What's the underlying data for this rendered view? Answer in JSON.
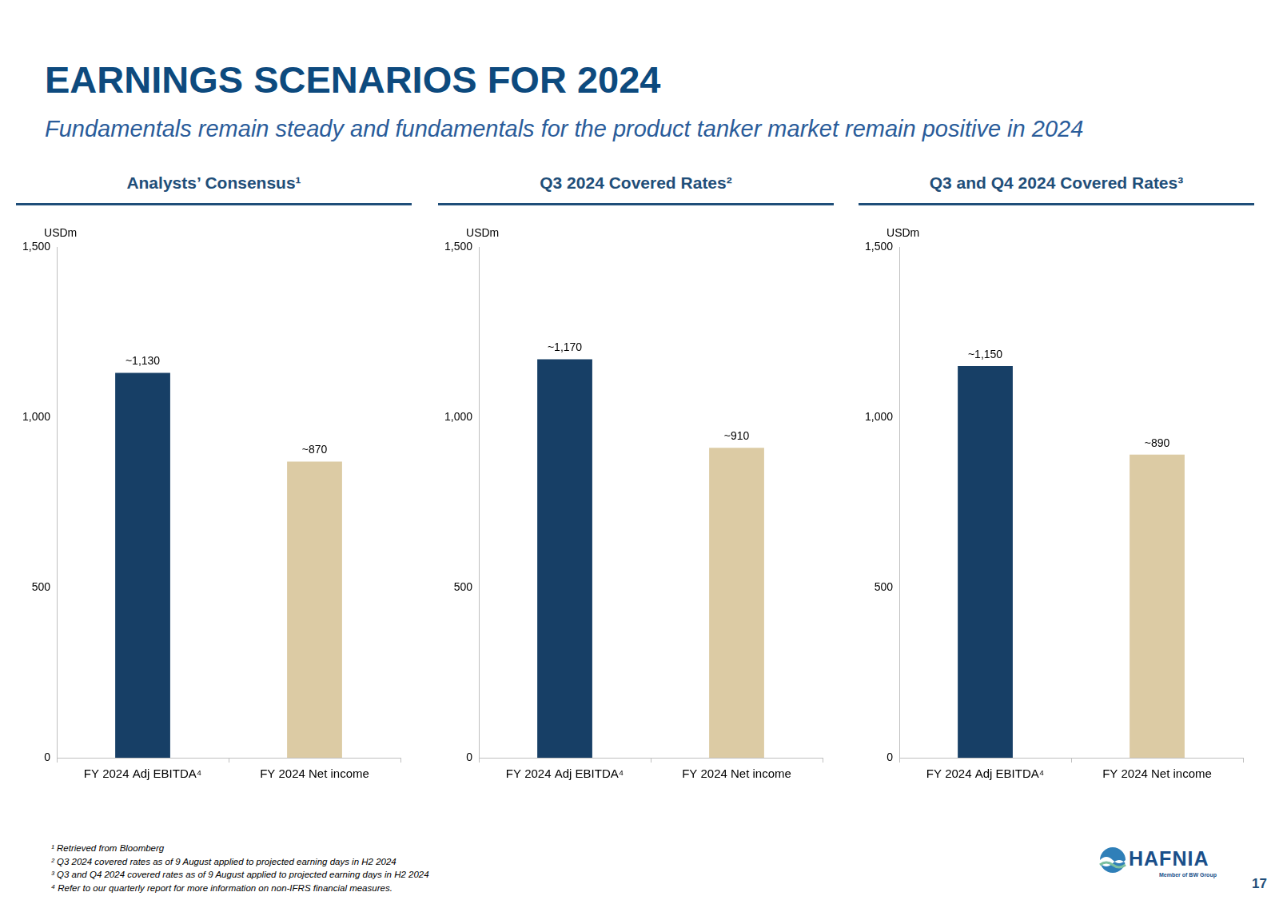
{
  "title": "EARNINGS SCENARIOS FOR 2024",
  "subtitle": "Fundamentals remain steady and fundamentals for the product tanker market remain positive in 2024",
  "chart_data": [
    {
      "type": "bar",
      "title": "Analysts’ Consensus¹",
      "ylabel": "USDm",
      "categories": [
        "FY 2024 Adj EBITDA⁴",
        "FY 2024 Net income"
      ],
      "values": [
        1130,
        870
      ],
      "value_labels": [
        "~1,130",
        "~870"
      ],
      "colors": [
        "#173f66",
        "#dccba4"
      ],
      "ylim": [
        0,
        1500
      ],
      "yticks": [
        0,
        500,
        {
          "value": 1000,
          "label": "1,000"
        },
        {
          "value": 1500,
          "label": "1,500"
        }
      ],
      "grid": false,
      "data_labels": true
    },
    {
      "type": "bar",
      "title": "Q3 2024 Covered Rates²",
      "ylabel": "USDm",
      "categories": [
        "FY 2024 Adj EBITDA⁴",
        "FY 2024 Net income"
      ],
      "values": [
        1170,
        910
      ],
      "value_labels": [
        "~1,170",
        "~910"
      ],
      "colors": [
        "#173f66",
        "#dccba4"
      ],
      "ylim": [
        0,
        1500
      ],
      "yticks": [
        0,
        500,
        {
          "value": 1000,
          "label": "1,000"
        },
        {
          "value": 1500,
          "label": "1,500"
        }
      ],
      "grid": false,
      "data_labels": true
    },
    {
      "type": "bar",
      "title": "Q3 and Q4 2024 Covered Rates³",
      "ylabel": "USDm",
      "categories": [
        "FY 2024 Adj EBITDA⁴",
        "FY 2024 Net income"
      ],
      "values": [
        1150,
        890
      ],
      "value_labels": [
        "~1,150",
        "~890"
      ],
      "colors": [
        "#173f66",
        "#dccba4"
      ],
      "ylim": [
        0,
        1500
      ],
      "yticks": [
        0,
        500,
        {
          "value": 1000,
          "label": "1,000"
        },
        {
          "value": 1500,
          "label": "1,500"
        }
      ],
      "grid": false,
      "data_labels": true
    }
  ],
  "footnotes": [
    "¹ Retrieved from Bloomberg",
    "² Q3 2024 covered rates as of 9 August applied to projected earning days in H2 2024",
    "³ Q3 and Q4 2024 covered rates as of 9 August applied to projected earning days in H2 2024",
    "⁴ Refer to our quarterly report for more information on non-IFRS financial measures."
  ],
  "logo": {
    "name": "HAFNIA",
    "tagline": "Member of BW Group"
  },
  "page_number": "17"
}
